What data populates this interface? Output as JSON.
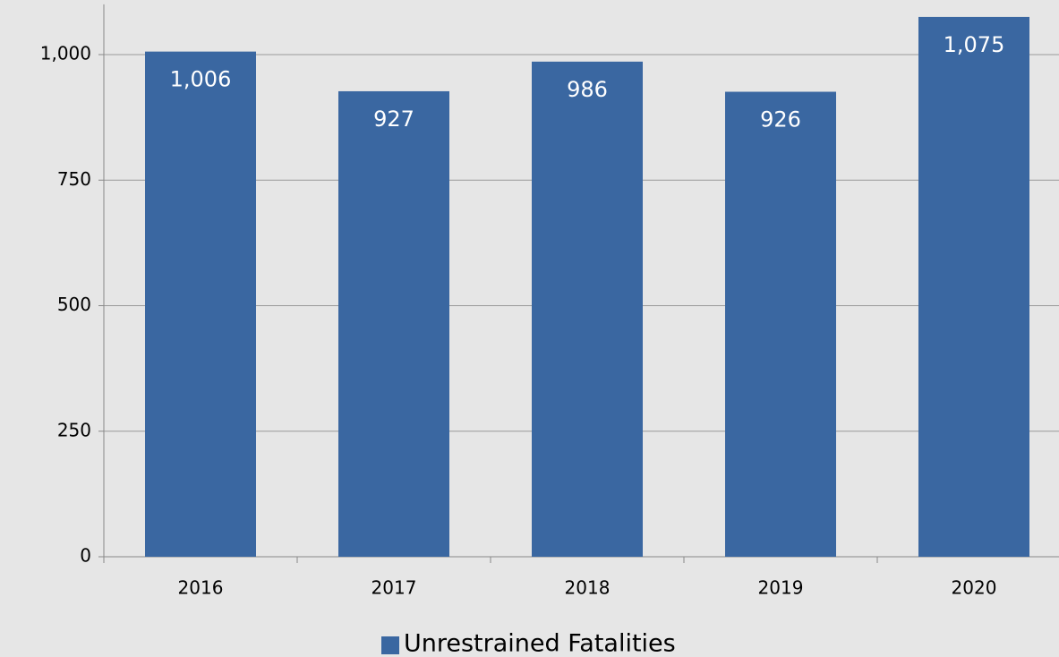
{
  "chart_data": {
    "type": "bar",
    "categories": [
      "2016",
      "2017",
      "2018",
      "2019",
      "2020"
    ],
    "series": [
      {
        "name": "Unrestrained Fatalities",
        "color": "#3a67a1",
        "values": [
          1006,
          927,
          986,
          926,
          1075
        ],
        "value_labels": [
          "1,006",
          "927",
          "986",
          "926",
          "1,075"
        ]
      }
    ],
    "ylim": [
      0,
      1100
    ],
    "yticks": [
      0,
      250,
      500,
      750,
      {
        "value": 1000,
        "label": "1,000"
      }
    ],
    "grid": true,
    "legend": "bottom"
  }
}
